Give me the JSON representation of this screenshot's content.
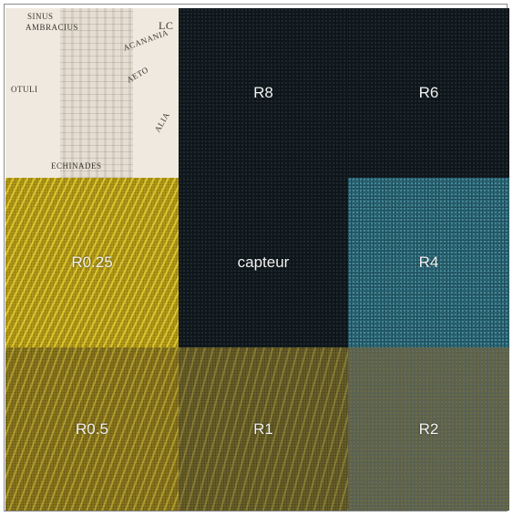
{
  "tiles": {
    "r8": "R8",
    "r6": "R6",
    "r025": "R0.25",
    "capteur": "capteur",
    "r4": "R4",
    "r05": "R0.5",
    "r1": "R1",
    "r2": "R2"
  },
  "map_labels": [
    "SINUS",
    "AMBRACIUS",
    "LC",
    "ACANANIA",
    "AETO",
    "OTULI",
    "ECHINADES",
    "ALIA"
  ],
  "colors": {
    "dark": "#0e1418",
    "teal": "#2d6a78",
    "yellow": "#b8a21a",
    "olive": "#6f6428",
    "map": "#e6ded2"
  }
}
